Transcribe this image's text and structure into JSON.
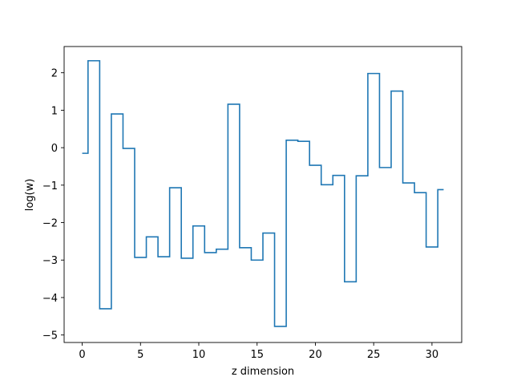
{
  "chart_data": {
    "type": "line",
    "style": "step",
    "title": "",
    "xlabel": "z dimension",
    "ylabel": "log(w)",
    "xlim": [
      -1.55,
      32.55
    ],
    "ylim": [
      -5.2,
      2.7
    ],
    "xticks": [
      0,
      5,
      10,
      15,
      20,
      25,
      30
    ],
    "yticks": [
      -5,
      -4,
      -3,
      -2,
      -1,
      0,
      1,
      2
    ],
    "grid": false,
    "legend": "none",
    "colors": {
      "line": "#1f77b4",
      "axes": "#000000",
      "background": "#ffffff"
    },
    "x": [
      0,
      1,
      2,
      3,
      4,
      5,
      6,
      7,
      8,
      9,
      10,
      11,
      12,
      13,
      14,
      15,
      16,
      17,
      18,
      19,
      20,
      21,
      22,
      23,
      24,
      25,
      26,
      27,
      28,
      29,
      30,
      31
    ],
    "y": [
      -0.15,
      2.32,
      -4.3,
      0.9,
      -0.02,
      -2.93,
      -2.38,
      -2.91,
      -1.07,
      -2.95,
      -2.09,
      -2.8,
      -2.71,
      1.16,
      -2.67,
      -3.0,
      -2.28,
      -4.77,
      0.2,
      0.17,
      -0.47,
      -0.99,
      -0.74,
      -3.58,
      -0.75,
      1.98,
      -0.53,
      1.51,
      -0.94,
      -1.2,
      -2.65,
      -1.12
    ]
  }
}
